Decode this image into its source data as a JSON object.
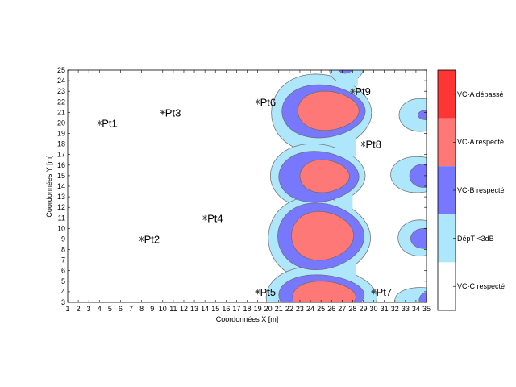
{
  "chart_data": {
    "type": "contour",
    "xlabel": "Coordonnées X [m]",
    "ylabel": "Coordonnées Y [m]",
    "xlim": [
      1,
      35
    ],
    "ylim": [
      3,
      25
    ],
    "xticks": [
      1,
      2,
      3,
      4,
      5,
      6,
      7,
      8,
      9,
      10,
      11,
      12,
      13,
      14,
      15,
      16,
      17,
      18,
      19,
      20,
      21,
      22,
      23,
      24,
      25,
      26,
      27,
      28,
      29,
      30,
      31,
      32,
      33,
      34,
      35
    ],
    "yticks": [
      3,
      4,
      5,
      6,
      7,
      8,
      9,
      10,
      11,
      12,
      13,
      14,
      15,
      16,
      17,
      18,
      19,
      20,
      21,
      22,
      23,
      24,
      25
    ],
    "points": [
      {
        "label": "Pt1",
        "x": 4,
        "y": 20
      },
      {
        "label": "Pt2",
        "x": 8,
        "y": 9
      },
      {
        "label": "Pt3",
        "x": 10,
        "y": 21
      },
      {
        "label": "Pt4",
        "x": 14,
        "y": 11
      },
      {
        "label": "Pt5",
        "x": 19,
        "y": 4
      },
      {
        "label": "Pt6",
        "x": 19,
        "y": 22
      },
      {
        "label": "Pt7",
        "x": 30,
        "y": 4
      },
      {
        "label": "Pt8",
        "x": 29,
        "y": 18
      },
      {
        "label": "Pt9",
        "x": 28,
        "y": 23
      }
    ],
    "colorbar": [
      {
        "label": "VC-A dépassé",
        "color": "#ff3535"
      },
      {
        "label": "VC-A respecté",
        "color": "#ff7878"
      },
      {
        "label": "VC-B respecté",
        "color": "#7878ff"
      },
      {
        "label": "DépT <3dB",
        "color": "#aee6fb"
      },
      {
        "label": "VC-C respecté",
        "color": "#ffffff"
      }
    ],
    "grid": false,
    "legend": "colorbar-right"
  }
}
